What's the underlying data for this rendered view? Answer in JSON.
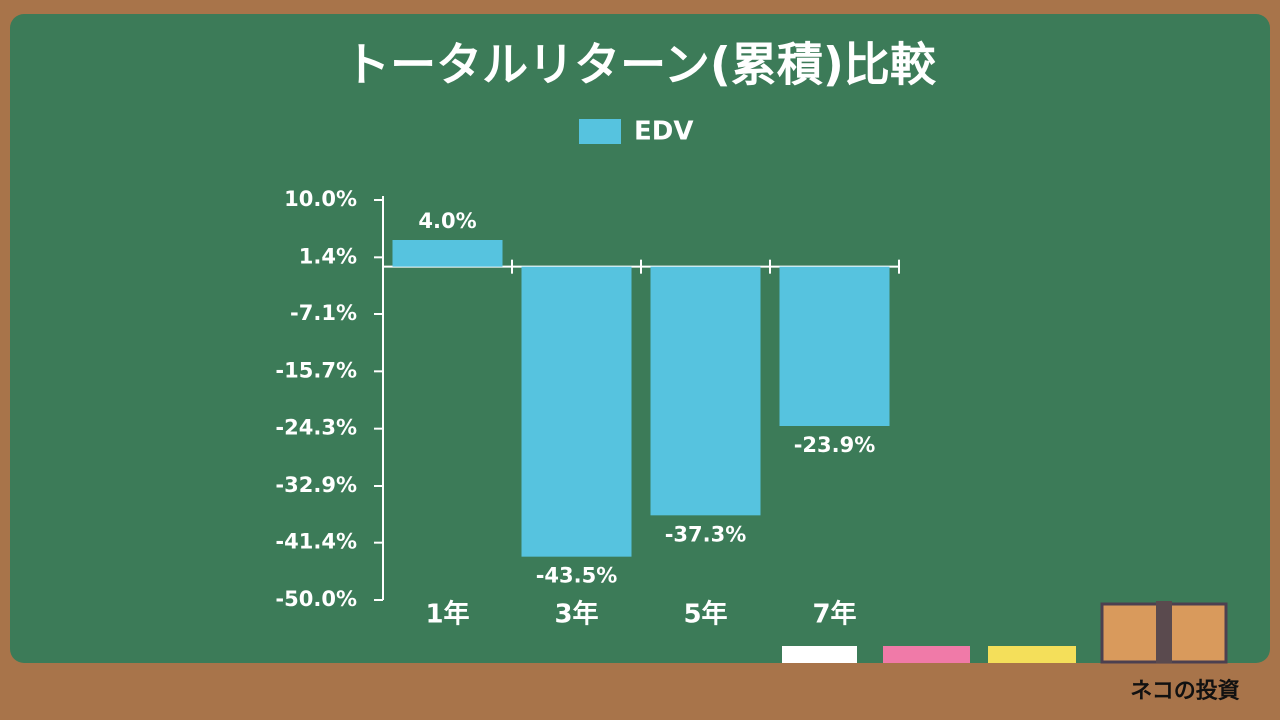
{
  "chart_data": {
    "type": "bar",
    "title": "トータルリターン(累積)比較",
    "categories": [
      "1年",
      "3年",
      "5年",
      "7年"
    ],
    "series": [
      {
        "name": "EDV",
        "color": "#56c3df",
        "values": [
          4.0,
          -43.5,
          -37.3,
          -23.9
        ],
        "value_labels": [
          "4.0%",
          "-43.5%",
          "-37.3%",
          "-23.9%"
        ]
      }
    ],
    "ylim": [
      -50,
      10
    ],
    "yticks": [
      {
        "value": 10,
        "label": "10.0%"
      },
      {
        "value": 1.4,
        "label": "1.4%"
      },
      {
        "value": -7.1,
        "label": "-7.1%"
      },
      {
        "value": -15.7,
        "label": "-15.7%"
      },
      {
        "value": -24.3,
        "label": "-24.3%"
      },
      {
        "value": -32.9,
        "label": "-32.9%"
      },
      {
        "value": -41.4,
        "label": "-41.4%"
      },
      {
        "value": -50,
        "label": "-50.0%"
      }
    ],
    "legend": "top",
    "watermark": "ネコの投資"
  }
}
